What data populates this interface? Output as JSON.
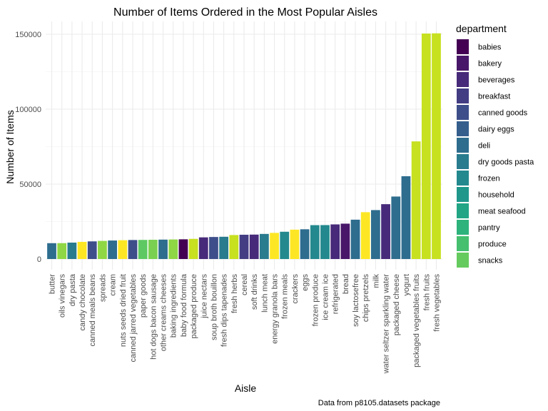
{
  "chart_data": {
    "type": "bar",
    "title": "Number of Items Ordered in the Most Popular Aisles",
    "xlabel": "Aisle",
    "ylabel": "Number of Items",
    "caption": "Data from p8105.datasets package",
    "ylim": [
      0,
      150609
    ],
    "yticks": [
      0,
      50000,
      100000,
      150000
    ],
    "grid": true,
    "legend_title": "department",
    "legend_position": "right",
    "legend": [
      {
        "name": "babies",
        "color": "#440154"
      },
      {
        "name": "bakery",
        "color": "#481769"
      },
      {
        "name": "beverages",
        "color": "#472a7a"
      },
      {
        "name": "breakfast",
        "color": "#433d84"
      },
      {
        "name": "canned goods",
        "color": "#3d4e8a"
      },
      {
        "name": "dairy eggs",
        "color": "#355e8d"
      },
      {
        "name": "deli",
        "color": "#2e6d8e"
      },
      {
        "name": "dry goods pasta",
        "color": "#297b8e"
      },
      {
        "name": "frozen",
        "color": "#23898e"
      },
      {
        "name": "household",
        "color": "#1f978b"
      },
      {
        "name": "meat seafood",
        "color": "#21a585"
      },
      {
        "name": "pantry",
        "color": "#2eb37c"
      },
      {
        "name": "produce",
        "color": "#46c06f"
      },
      {
        "name": "snacks",
        "color": "#65cb5e"
      }
    ],
    "bars": [
      {
        "aisle": "butter",
        "value": 10575,
        "color": "#2e6d8e"
      },
      {
        "aisle": "oils vinegars",
        "value": 10600,
        "color": "#8fd744"
      },
      {
        "aisle": "dry pasta",
        "value": 10950,
        "color": "#297b8e"
      },
      {
        "aisle": "candy chocolate",
        "value": 11450,
        "color": "#fde725"
      },
      {
        "aisle": "canned meals beans",
        "value": 11775,
        "color": "#3d4e8a"
      },
      {
        "aisle": "spreads",
        "value": 12100,
        "color": "#8fd744"
      },
      {
        "aisle": "cream",
        "value": 12350,
        "color": "#2e6d8e"
      },
      {
        "aisle": "nuts seeds dried fruit",
        "value": 12550,
        "color": "#fde725"
      },
      {
        "aisle": "canned jarred vegetables",
        "value": 12675,
        "color": "#3d4e8a"
      },
      {
        "aisle": "paper goods",
        "value": 12750,
        "color": "#5ec962"
      },
      {
        "aisle": "hot dogs bacon sausage",
        "value": 12850,
        "color": "#7ad151"
      },
      {
        "aisle": "other creams cheeses",
        "value": 12950,
        "color": "#2e6d8e"
      },
      {
        "aisle": "baking ingredients",
        "value": 13050,
        "color": "#8fd744"
      },
      {
        "aisle": "baby food formula",
        "value": 13150,
        "color": "#440154"
      },
      {
        "aisle": "packaged produce",
        "value": 13450,
        "color": "#c7e020"
      },
      {
        "aisle": "juice nectars",
        "value": 14450,
        "color": "#472a7a"
      },
      {
        "aisle": "soup broth bouillon",
        "value": 14700,
        "color": "#3d4e8a"
      },
      {
        "aisle": "fresh dips tapenades",
        "value": 14850,
        "color": "#297b8e"
      },
      {
        "aisle": "fresh herbs",
        "value": 16000,
        "color": "#c7e020"
      },
      {
        "aisle": "cereal",
        "value": 16200,
        "color": "#433d84"
      },
      {
        "aisle": "soft drinks",
        "value": 16300,
        "color": "#472a7a"
      },
      {
        "aisle": "lunch meat",
        "value": 16750,
        "color": "#297b8e"
      },
      {
        "aisle": "energy granola bars",
        "value": 17450,
        "color": "#fde725"
      },
      {
        "aisle": "frozen meals",
        "value": 18200,
        "color": "#23898e"
      },
      {
        "aisle": "crackers",
        "value": 19600,
        "color": "#fde725"
      },
      {
        "aisle": "eggs",
        "value": 19850,
        "color": "#2e6d8e"
      },
      {
        "aisle": "frozen produce",
        "value": 22600,
        "color": "#23898e"
      },
      {
        "aisle": "ice cream ice",
        "value": 22650,
        "color": "#23898e"
      },
      {
        "aisle": "refrigerated",
        "value": 23100,
        "color": "#472a7a"
      },
      {
        "aisle": "bread",
        "value": 23600,
        "color": "#481769"
      },
      {
        "aisle": "soy lactosefree",
        "value": 26250,
        "color": "#2e6d8e"
      },
      {
        "aisle": "chips pretzels",
        "value": 31250,
        "color": "#fde725"
      },
      {
        "aisle": "milk",
        "value": 32650,
        "color": "#2e6d8e"
      },
      {
        "aisle": "water seltzer sparkling water",
        "value": 36600,
        "color": "#472a7a"
      },
      {
        "aisle": "packaged cheese",
        "value": 41700,
        "color": "#2e6d8e"
      },
      {
        "aisle": "yogurt",
        "value": 55250,
        "color": "#2e6d8e"
      },
      {
        "aisle": "packaged vegetables fruits",
        "value": 78500,
        "color": "#c7e020"
      },
      {
        "aisle": "fresh fruits",
        "value": 150473,
        "color": "#c7e020"
      },
      {
        "aisle": "fresh vegetables",
        "value": 150609,
        "color": "#c7e020"
      }
    ]
  }
}
